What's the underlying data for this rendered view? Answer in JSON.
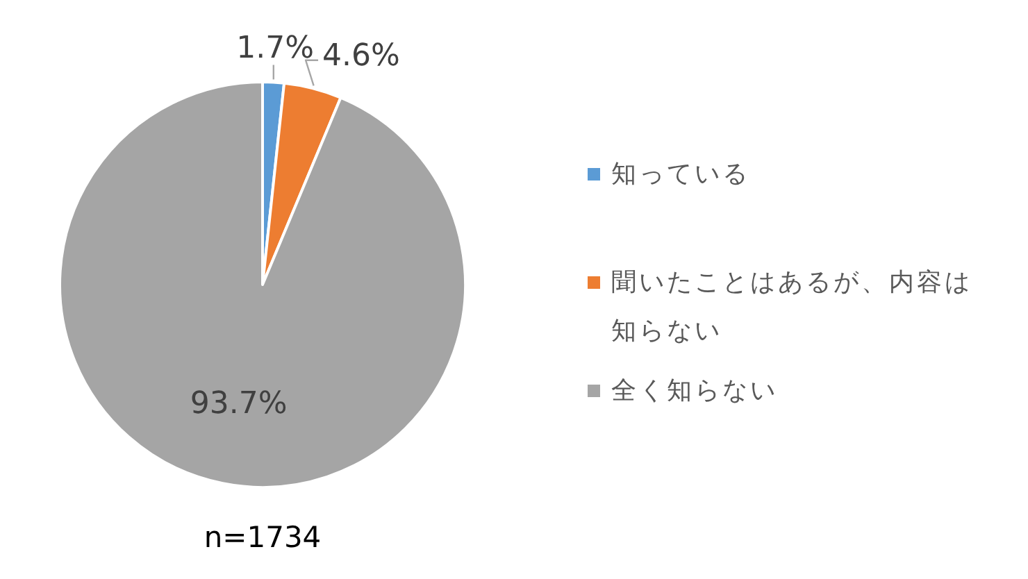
{
  "chart_data": {
    "type": "pie",
    "categories": [
      "知っている",
      "聞いたことはあるが、内容は知らない",
      "全く知らない"
    ],
    "values": [
      1.7,
      4.6,
      93.7
    ],
    "colors": [
      "#5b9bd5",
      "#ed7d31",
      "#a5a5a5"
    ],
    "value_labels": [
      "1.7%",
      "4.6%",
      "93.7%"
    ],
    "legend": "right",
    "annotations": [
      "n=1734"
    ]
  }
}
